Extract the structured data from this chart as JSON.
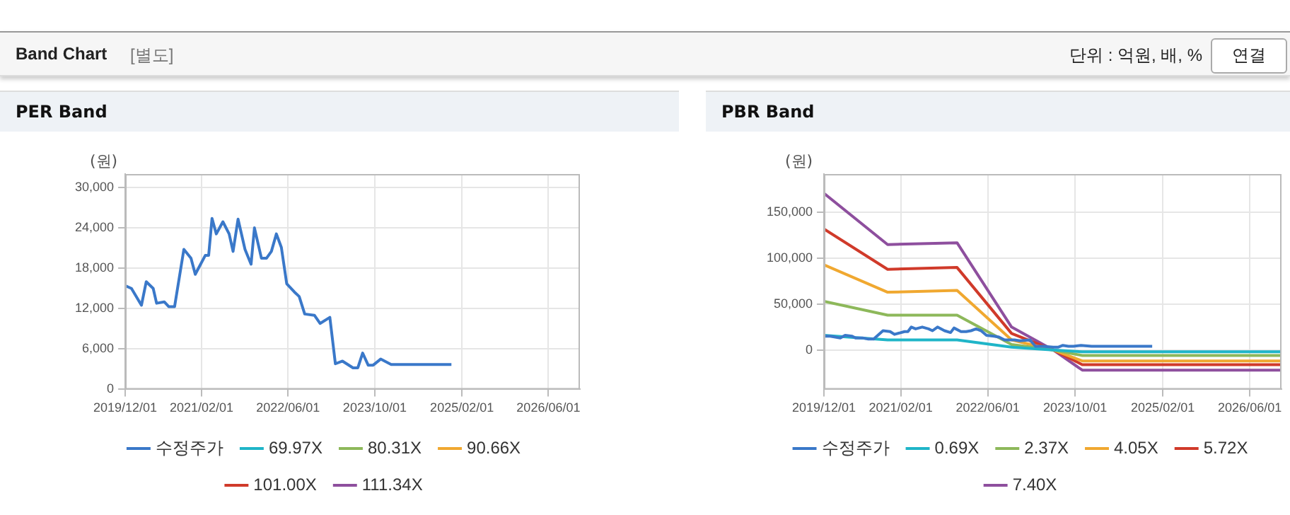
{
  "chart_data": [
    {
      "type": "line",
      "title": "PER Band",
      "ylabel": "(원)",
      "annotations": [
        "Band Chart",
        "[별도]",
        "단위 : 억원, 배, %",
        "연결"
      ],
      "xlim": [
        "2019-12-01",
        "2026-11-25"
      ],
      "xticks": [
        {
          "value": "2019-12-01",
          "label": "2019/12/01"
        },
        {
          "value": "2021-02-01",
          "label": "2021/02/01"
        },
        {
          "value": "2022-06-01",
          "label": "2022/06/01"
        },
        {
          "value": "2023-10-01",
          "label": "2023/10/01"
        },
        {
          "value": "2025-02-01",
          "label": "2025/02/01"
        },
        {
          "value": "2026-06-01",
          "label": "2026/06/01"
        }
      ],
      "ylim": [
        0,
        32000
      ],
      "yticks": [
        0,
        {
          "value": 6000,
          "label": "6,000"
        },
        {
          "value": 12000,
          "label": "12,000"
        },
        {
          "value": 18000,
          "label": "18,000"
        },
        {
          "value": 24000,
          "label": "24,000"
        },
        {
          "value": 30000,
          "label": "30,000"
        }
      ],
      "grid": true,
      "legend": "bottom",
      "marker": "none",
      "line_style": "solid",
      "series": [
        {
          "name": "수정주가",
          "color": "#3a78c9",
          "x": [
            "2019-12-01",
            "2020-01-05",
            "2020-03-01",
            "2020-03-28",
            "2020-05-06",
            "2020-05-25",
            "2020-07-07",
            "2020-08-01",
            "2020-09-03",
            "2020-10-25",
            "2020-12-04",
            "2020-12-28",
            "2021-02-22",
            "2021-03-13",
            "2021-04-01",
            "2021-04-25",
            "2021-06-01",
            "2021-07-06",
            "2021-07-28",
            "2021-08-25",
            "2021-10-03",
            "2021-11-06",
            "2021-11-25",
            "2022-01-03",
            "2022-02-01",
            "2022-02-28",
            "2022-03-28",
            "2022-04-25",
            "2022-05-25",
            "2022-07-06",
            "2022-08-03",
            "2022-09-03",
            "2022-10-28",
            "2022-11-28",
            "2023-01-22",
            "2023-02-22",
            "2023-04-03",
            "2023-06-01",
            "2023-06-28",
            "2023-07-25",
            "2023-08-25",
            "2023-09-22",
            "2023-11-03",
            "2024-01-01",
            "2024-12-04"
          ],
          "values": [
            15400,
            15000,
            12500,
            16000,
            15000,
            12800,
            13000,
            12300,
            12300,
            20800,
            19500,
            17100,
            19900,
            19900,
            25400,
            23100,
            24900,
            23100,
            20500,
            25300,
            20800,
            18600,
            24000,
            19500,
            19500,
            20500,
            23100,
            21100,
            15700,
            14500,
            13800,
            11200,
            11000,
            9800,
            10700,
            3800,
            4200,
            3200,
            3200,
            5400,
            3600,
            3600,
            4500,
            3700,
            3700
          ]
        },
        {
          "name": "69.97X",
          "color": "#1fb5c8"
        },
        {
          "name": "80.31X",
          "color": "#8db85a"
        },
        {
          "name": "90.66X",
          "color": "#f0a830"
        },
        {
          "name": "101.00X",
          "color": "#d03a2a"
        },
        {
          "name": "111.34X",
          "color": "#8e4f9e"
        }
      ]
    },
    {
      "type": "line",
      "title": "PBR Band",
      "ylabel": "(원)",
      "xlim": [
        "2019-12-01",
        "2026-11-25"
      ],
      "xticks": [
        {
          "value": "2019-12-01",
          "label": "2019/12/01"
        },
        {
          "value": "2021-02-01",
          "label": "2021/02/01"
        },
        {
          "value": "2022-06-01",
          "label": "2022/06/01"
        },
        {
          "value": "2023-10-01",
          "label": "2023/10/01"
        },
        {
          "value": "2025-02-01",
          "label": "2025/02/01"
        },
        {
          "value": "2026-06-01",
          "label": "2026/06/01"
        }
      ],
      "ylim": [
        -43000,
        192000
      ],
      "yticks": [
        0,
        {
          "value": 50000,
          "label": "50,000"
        },
        {
          "value": 100000,
          "label": "100,000"
        },
        {
          "value": 150000,
          "label": "150,000"
        }
      ],
      "grid": true,
      "legend": "bottom",
      "marker": "none",
      "line_style": "solid",
      "series": [
        {
          "name": "수정주가",
          "color": "#3a78c9",
          "x": [
            "2019-12-01",
            "2020-01-05",
            "2020-03-01",
            "2020-03-28",
            "2020-05-06",
            "2020-05-25",
            "2020-07-07",
            "2020-08-01",
            "2020-09-03",
            "2020-10-25",
            "2020-12-04",
            "2020-12-28",
            "2021-02-22",
            "2021-03-13",
            "2021-04-01",
            "2021-04-25",
            "2021-06-01",
            "2021-07-06",
            "2021-07-28",
            "2021-08-25",
            "2021-10-03",
            "2021-11-06",
            "2021-11-25",
            "2022-01-03",
            "2022-02-01",
            "2022-02-28",
            "2022-03-28",
            "2022-04-25",
            "2022-05-25",
            "2022-07-06",
            "2022-08-03",
            "2022-09-03",
            "2022-10-28",
            "2022-11-28",
            "2023-01-22",
            "2023-02-22",
            "2023-04-03",
            "2023-06-01",
            "2023-06-28",
            "2023-07-25",
            "2023-08-25",
            "2023-09-22",
            "2023-11-03",
            "2024-01-01",
            "2024-12-04"
          ],
          "values": [
            15000,
            15000,
            13000,
            16000,
            15000,
            13000,
            13000,
            12000,
            12000,
            21000,
            20000,
            17000,
            20000,
            20000,
            25000,
            23000,
            25000,
            23000,
            21000,
            25000,
            21000,
            19000,
            24000,
            20000,
            20000,
            21000,
            23000,
            21000,
            16000,
            15000,
            14000,
            11000,
            11000,
            10000,
            11000,
            4000,
            4000,
            3000,
            3000,
            5000,
            4000,
            4000,
            5000,
            4000,
            4000
          ]
        },
        {
          "name": "0.69X",
          "color": "#1fb5c8",
          "x": [
            "2019-12-01",
            "2020-11-20",
            "2021-12-12",
            "2022-10-12",
            "2023-06-01",
            "2023-11-10",
            "2026-11-25"
          ],
          "values": [
            16000,
            11000,
            11000,
            3000,
            0,
            -2000,
            -2000
          ]
        },
        {
          "name": "2.37X",
          "color": "#8db85a",
          "x": [
            "2019-12-01",
            "2020-11-20",
            "2021-12-12",
            "2022-10-12",
            "2023-06-01",
            "2023-11-10",
            "2026-11-25"
          ],
          "values": [
            53000,
            38000,
            38000,
            6000,
            0,
            -6000,
            -6000
          ]
        },
        {
          "name": "4.05X",
          "color": "#f0a830",
          "x": [
            "2019-12-01",
            "2020-11-20",
            "2021-12-12",
            "2022-10-12",
            "2023-06-01",
            "2023-11-10",
            "2026-11-25"
          ],
          "values": [
            93000,
            63000,
            65000,
            11000,
            0,
            -12000,
            -12000
          ]
        },
        {
          "name": "5.72X",
          "color": "#d03a2a",
          "x": [
            "2019-12-01",
            "2020-11-20",
            "2021-12-12",
            "2022-10-12",
            "2023-06-01",
            "2023-11-10",
            "2026-11-25"
          ],
          "values": [
            132000,
            88000,
            90000,
            18000,
            0,
            -16000,
            -16000
          ]
        },
        {
          "name": "7.40X",
          "color": "#8e4f9e",
          "x": [
            "2019-12-01",
            "2020-11-20",
            "2021-12-12",
            "2022-10-12",
            "2023-06-01",
            "2023-11-10",
            "2026-11-25"
          ],
          "values": [
            171000,
            115000,
            117000,
            25000,
            0,
            -22000,
            -22000
          ]
        }
      ]
    }
  ]
}
